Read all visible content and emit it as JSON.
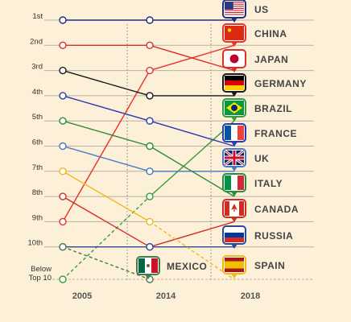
{
  "chart_data": {
    "type": "line",
    "x": [
      "2005",
      "2014",
      "2018"
    ],
    "rank_labels": [
      "1st",
      "2nd",
      "3rd",
      "4th",
      "5th",
      "6th",
      "7th",
      "8th",
      "9th",
      "10th",
      "Below Top 10"
    ],
    "series": [
      {
        "name": "US",
        "color": "#1f2d7a",
        "values": [
          1,
          1,
          1
        ],
        "flag": "us-flag-icon"
      },
      {
        "name": "CHINA",
        "color": "#e8322a",
        "values": [
          9,
          3,
          2
        ],
        "flag": "china-flag-icon"
      },
      {
        "name": "JAPAN",
        "color": "#d9302b",
        "values": [
          2,
          2,
          3
        ],
        "flag": "japan-flag-icon"
      },
      {
        "name": "GERMANY",
        "color": "#1a1a1a",
        "values": [
          3,
          4,
          4
        ],
        "flag": "germany-flag-icon"
      },
      {
        "name": "BRAZIL",
        "color": "#3a9a3a",
        "values": [
          11,
          8,
          5
        ],
        "flag": "brazil-flag-icon"
      },
      {
        "name": "FRANCE",
        "color": "#2a3bb0",
        "values": [
          4,
          5,
          6
        ],
        "flag": "france-flag-icon"
      },
      {
        "name": "UK",
        "color": "#4a78c0",
        "values": [
          6,
          7,
          7
        ],
        "flag": "uk-flag-icon"
      },
      {
        "name": "ITALY",
        "color": "#2e8b3a",
        "values": [
          5,
          6,
          8
        ],
        "flag": "italy-flag-icon"
      },
      {
        "name": "CANADA",
        "color": "#d42a24",
        "values": [
          8,
          10,
          9
        ],
        "flag": "canada-flag-icon"
      },
      {
        "name": "RUSSIA",
        "color": "#2b4a9a",
        "values": [
          10,
          10,
          10
        ],
        "flag": "russia-flag-icon"
      },
      {
        "name": "SPAIN",
        "color": "#f2b818",
        "values": [
          7,
          9,
          11
        ],
        "flag": "spain-flag-icon"
      },
      {
        "name": "MEXICO",
        "color": "#4a7a4a",
        "values": [
          10,
          11,
          null
        ],
        "flag": "mexico-flag-icon"
      }
    ],
    "below_top10_rank": 11,
    "grid": true,
    "legend": "right-end labels"
  }
}
